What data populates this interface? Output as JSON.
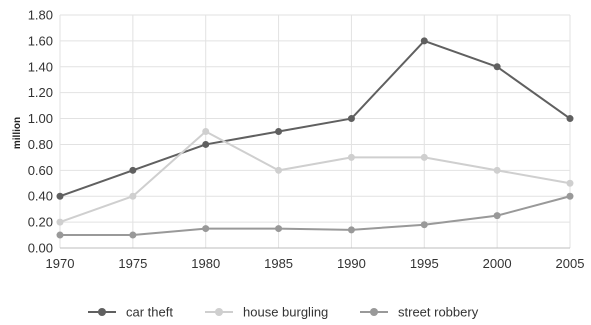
{
  "chart_data": {
    "type": "line",
    "title": "",
    "xlabel": "",
    "ylabel": "million",
    "x": [
      "1970",
      "1975",
      "1980",
      "1985",
      "1990",
      "1995",
      "2000",
      "2005"
    ],
    "ylim": [
      0,
      1.8
    ],
    "yticks": [
      "0.00",
      "0.20",
      "0.40",
      "0.60",
      "0.80",
      "1.00",
      "1.20",
      "1.40",
      "1.60",
      "1.80"
    ],
    "grid": true,
    "legend_position": "bottom",
    "series": [
      {
        "name": "car theft",
        "values": [
          0.4,
          0.6,
          0.8,
          0.9,
          1.0,
          1.6,
          1.4,
          1.0
        ],
        "color": "#606060"
      },
      {
        "name": "house burgling",
        "values": [
          0.2,
          0.4,
          0.9,
          0.6,
          0.7,
          0.7,
          0.6,
          0.5
        ],
        "color": "#cfcfcf"
      },
      {
        "name": "street robbery",
        "values": [
          0.1,
          0.1,
          0.15,
          0.15,
          0.14,
          0.18,
          0.25,
          0.4
        ],
        "color": "#999999"
      }
    ]
  }
}
